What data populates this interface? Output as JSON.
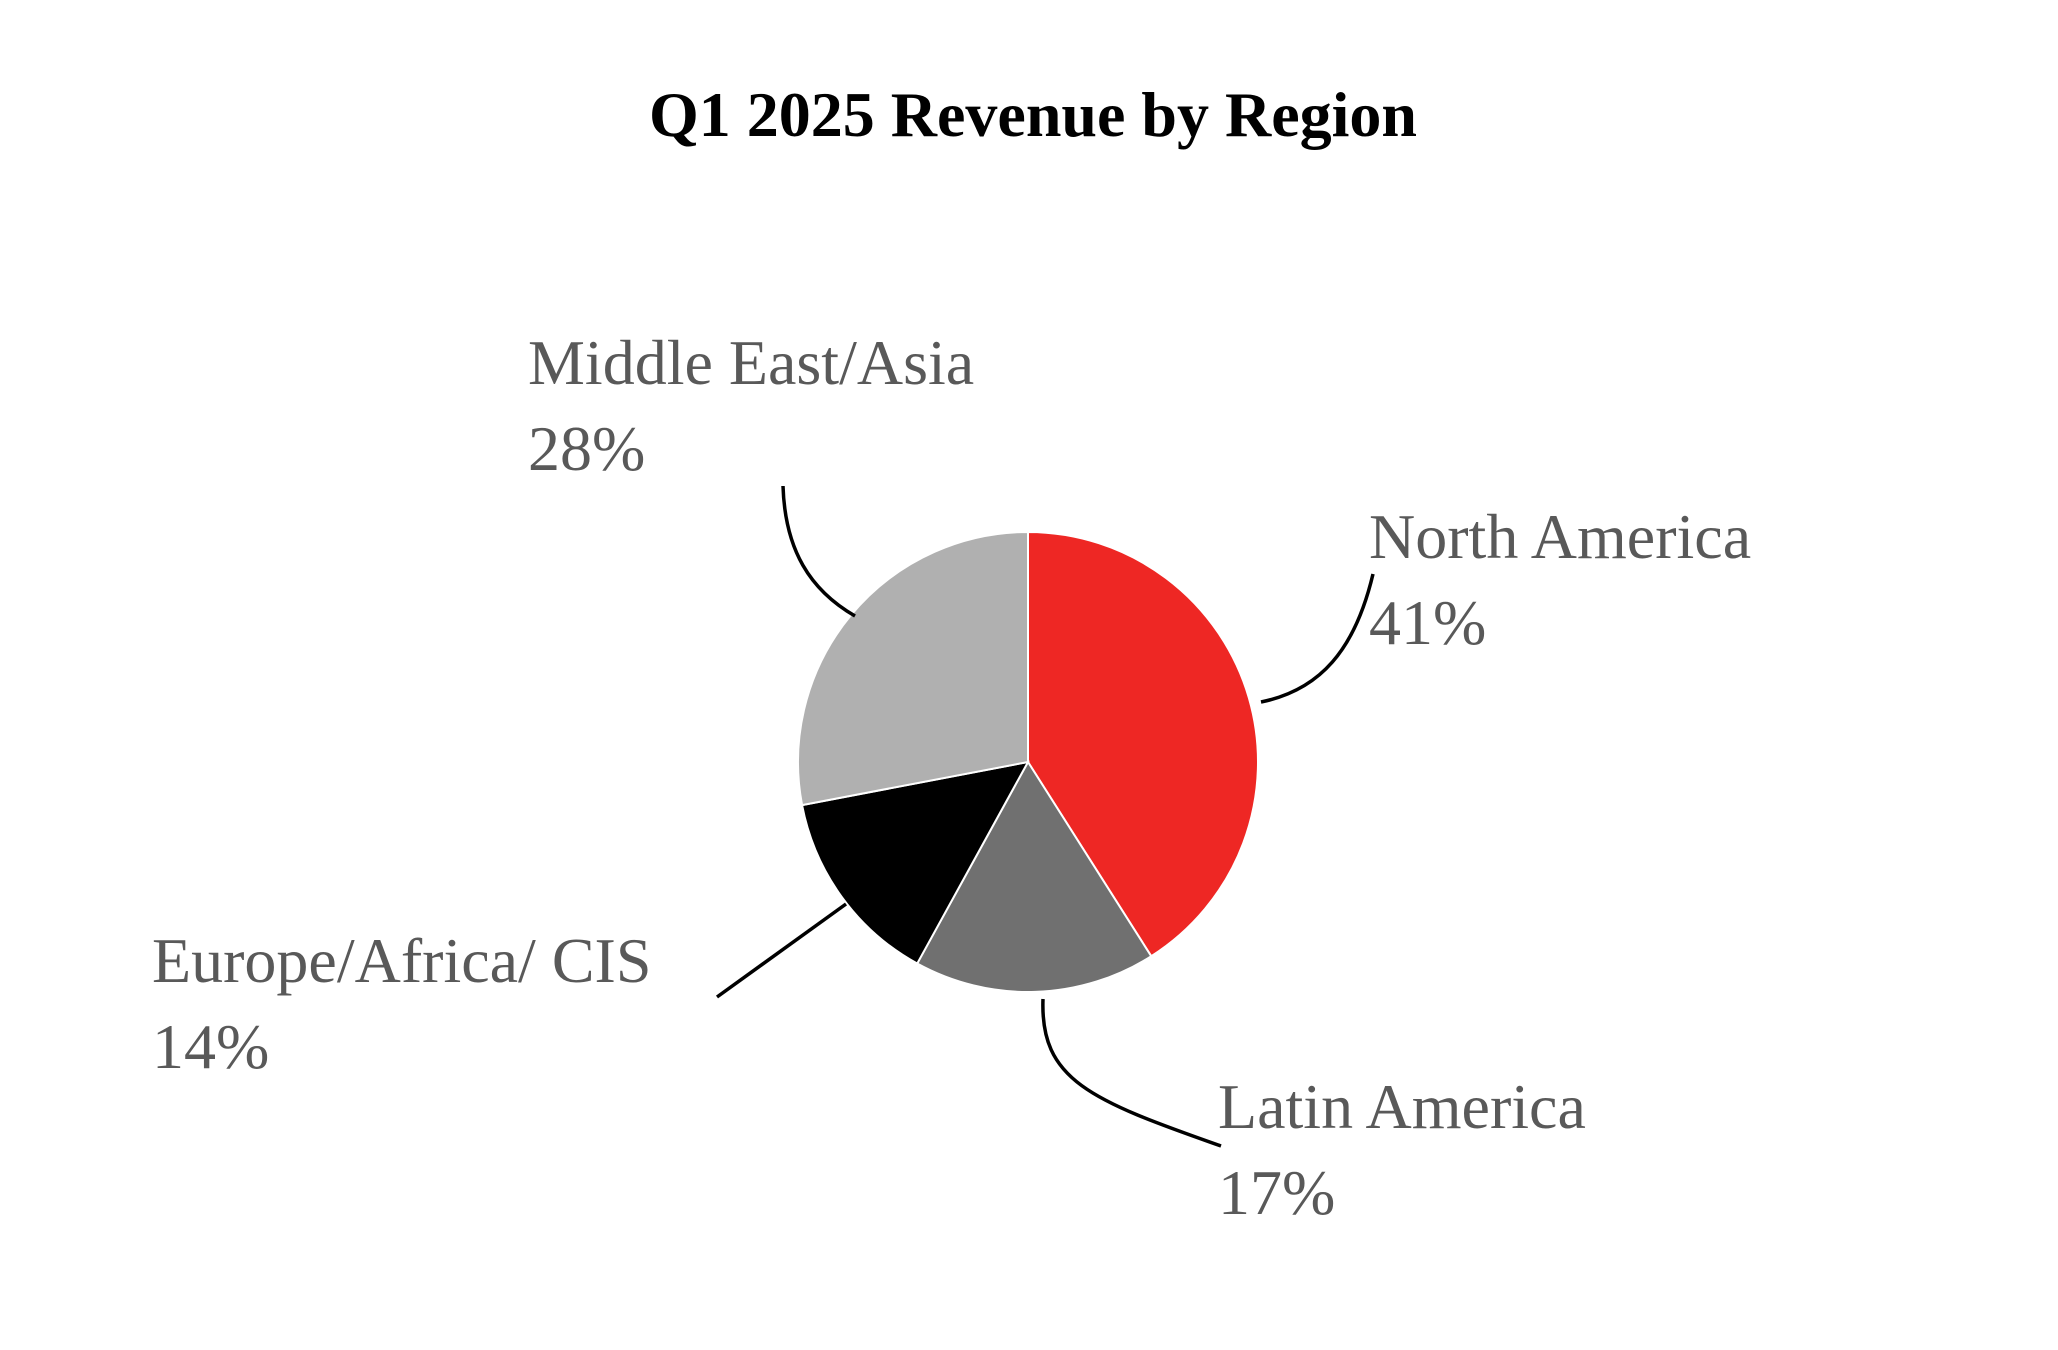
{
  "chart_data": {
    "type": "pie",
    "title": "Q1 2025 Revenue by Region",
    "start": "top",
    "direction": "clockwise",
    "slices": [
      {
        "label": "North America",
        "value": 41,
        "value_label": "41%",
        "color": "#EE2724"
      },
      {
        "label": "Latin America",
        "value": 17,
        "value_label": "17%",
        "color": "#707070"
      },
      {
        "label": "Europe/Africa/ CIS",
        "value": 14,
        "value_label": "14%",
        "color": "#000000"
      },
      {
        "label": "Middle East/Asia",
        "value": 28,
        "value_label": "28%",
        "color": "#B0B0B0"
      }
    ],
    "legend": "none",
    "label_style": "outside with leader lines"
  }
}
